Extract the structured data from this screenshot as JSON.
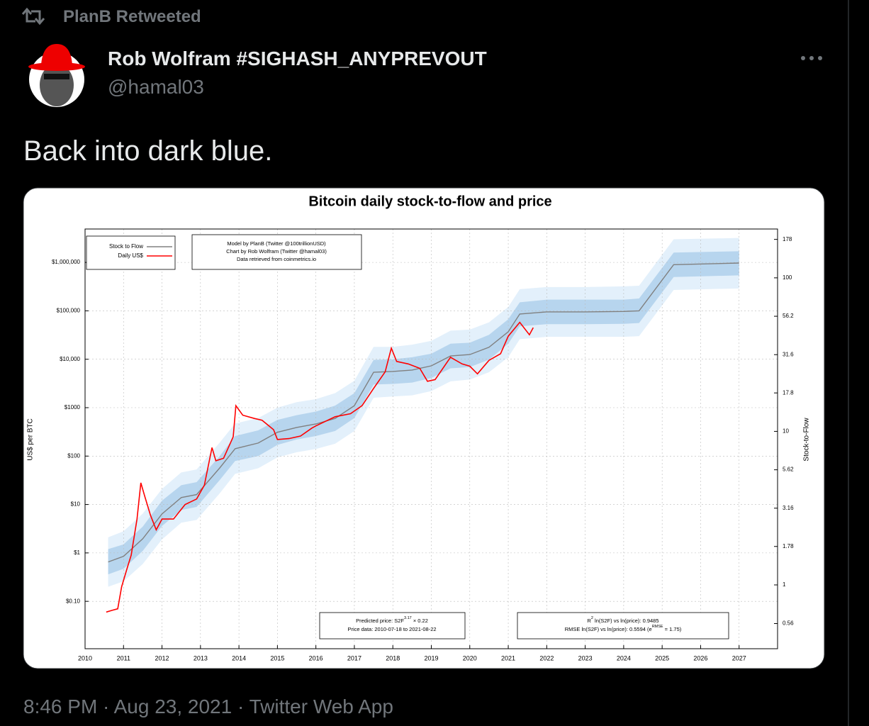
{
  "retweet": "PlanB Retweeted",
  "author": {
    "name": "Rob Wolfram #SIGHASH_ANYPREVOUT",
    "handle": "@hamal03"
  },
  "text": "Back into dark blue.",
  "timestamp": "8:46 PM · Aug 23, 2021 · Twitter Web App",
  "chart_data": {
    "type": "line",
    "title": "Bitcoin daily stock-to-flow and price",
    "y_label": "US$ per BTC",
    "y2_label": "Stock-to-Flow",
    "log_y": true,
    "grid": true,
    "legend": "top-left",
    "annotations": [
      "Model by PlanB (Twitter @100trillionUSD)",
      "Chart by Rob Wolfram (Twitter @hamal03)",
      "Data retrieved from coinmetrics.io"
    ],
    "formula": {
      "prefix": "Predicted price: S2F",
      "exponent": "3.17",
      "suffix": " × 0.22",
      "range": "Price data: 2010-07-18 to 2021-08-22"
    },
    "stats": {
      "r2_base": "R",
      "r2_exp": "2",
      "r2_text": " ln(S2F) vs ln(price): 0.9485",
      "rmse_text": "RMSE ln(S2F) vs ln(price): 0.5594 (e",
      "rmse_exp": "RMSE",
      "rmse_suffix": " = 1.75)"
    },
    "xlim": [
      2010,
      2028
    ],
    "xticks": [
      2010,
      2011,
      2012,
      2013,
      2014,
      2015,
      2016,
      2017,
      2018,
      2019,
      2020,
      2021,
      2022,
      2023,
      2024,
      2025,
      2026,
      2027
    ],
    "ylim": [
      0.0105,
      4900000
    ],
    "yticks": [
      {
        "value": 0.1,
        "label": "$0.10"
      },
      {
        "value": 1,
        "label": "$1"
      },
      {
        "value": 10,
        "label": "$10"
      },
      {
        "value": 100,
        "label": "$100"
      },
      {
        "value": 1000,
        "label": "$1000"
      },
      {
        "value": 10000,
        "label": "$10,000"
      },
      {
        "value": 100000,
        "label": "$100,000"
      },
      {
        "value": 1000000,
        "label": "$1,000,000"
      }
    ],
    "y2lim": [
      0.384,
      208
    ],
    "y2ticks": [
      0.56,
      1,
      1.78,
      3.16,
      5.62,
      10,
      17.8,
      31.6,
      56.2,
      100,
      178
    ],
    "series": [
      {
        "name": "Stock to Flow",
        "color": "#808080",
        "x": [
          2010.6,
          2011.0,
          2011.5,
          2012.0,
          2012.5,
          2012.9,
          2013.5,
          2013.9,
          2014.5,
          2015.0,
          2015.5,
          2016.0,
          2016.5,
          2017.0,
          2017.5,
          2018.0,
          2018.5,
          2019.0,
          2019.5,
          2020.0,
          2020.5,
          2021.0,
          2021.3,
          2022.0,
          2023.0,
          2024.0,
          2024.4,
          2025.3,
          2027.0
        ],
        "values": [
          0.65,
          0.85,
          1.96,
          6.4,
          13.9,
          16,
          57,
          142,
          186,
          310,
          390,
          460,
          600,
          1100,
          5400,
          5600,
          6000,
          7300,
          11700,
          12500,
          17700,
          37000,
          86000,
          95000,
          95000,
          97000,
          100000,
          900000,
          970000
        ]
      },
      {
        "name": "Daily US$",
        "color": "#ff0000",
        "x": [
          2010.55,
          2010.7,
          2010.85,
          2010.95,
          2011.1,
          2011.2,
          2011.35,
          2011.45,
          2011.55,
          2011.7,
          2011.85,
          2012.0,
          2012.3,
          2012.6,
          2012.9,
          2013.1,
          2013.3,
          2013.4,
          2013.6,
          2013.85,
          2013.92,
          2014.1,
          2014.4,
          2014.6,
          2014.9,
          2015.0,
          2015.3,
          2015.6,
          2015.9,
          2016.0,
          2016.5,
          2016.9,
          2017.2,
          2017.5,
          2017.8,
          2017.96,
          2018.1,
          2018.4,
          2018.7,
          2018.9,
          2019.1,
          2019.5,
          2019.8,
          2020.0,
          2020.2,
          2020.5,
          2020.8,
          2021.0,
          2021.3,
          2021.55,
          2021.65
        ],
        "values": [
          0.06,
          0.065,
          0.07,
          0.2,
          0.5,
          0.9,
          5,
          28,
          15,
          6,
          3,
          5,
          5,
          10,
          13,
          25,
          150,
          80,
          90,
          250,
          1100,
          700,
          600,
          550,
          350,
          220,
          230,
          260,
          380,
          420,
          650,
          750,
          1100,
          2500,
          5500,
          17000,
          9000,
          8000,
          6500,
          3500,
          3800,
          11000,
          8000,
          7200,
          5000,
          9500,
          13000,
          30000,
          58000,
          32000,
          45000
        ]
      }
    ],
    "bands": [
      {
        "color": "#e3f0fb",
        "lower": [
          0.2,
          0.26,
          0.59,
          1.9,
          4.2,
          4.8,
          17,
          43,
          56,
          94,
          120,
          140,
          180,
          330,
          1600,
          1700,
          1800,
          2200,
          3500,
          3800,
          5400,
          11000,
          26000,
          29000,
          29000,
          29000,
          30000,
          270000,
          290000
        ],
        "upper": [
          2.1,
          2.8,
          6.5,
          21,
          46,
          53,
          190,
          470,
          610,
          1000,
          1300,
          1500,
          2000,
          3600,
          18000,
          18000,
          20000,
          24000,
          39000,
          41000,
          58000,
          120000,
          280000,
          310000,
          310000,
          320000,
          330000,
          3000000,
          3200000
        ]
      },
      {
        "color": "#b7d5ee",
        "lower": [
          0.36,
          0.47,
          1.1,
          3.6,
          7.7,
          8.9,
          32,
          79,
          100,
          170,
          220,
          260,
          330,
          610,
          3000,
          3100,
          3300,
          4100,
          6500,
          6900,
          9800,
          21000,
          48000,
          53000,
          53000,
          54000,
          56000,
          500000,
          540000
        ],
        "upper": [
          1.2,
          1.5,
          3.5,
          12,
          25,
          29,
          100,
          260,
          340,
          560,
          700,
          830,
          1100,
          2000,
          9700,
          10000,
          11000,
          13000,
          21000,
          22000,
          32000,
          67000,
          150000,
          170000,
          170000,
          170000,
          180000,
          1600000,
          1700000
        ]
      }
    ]
  }
}
